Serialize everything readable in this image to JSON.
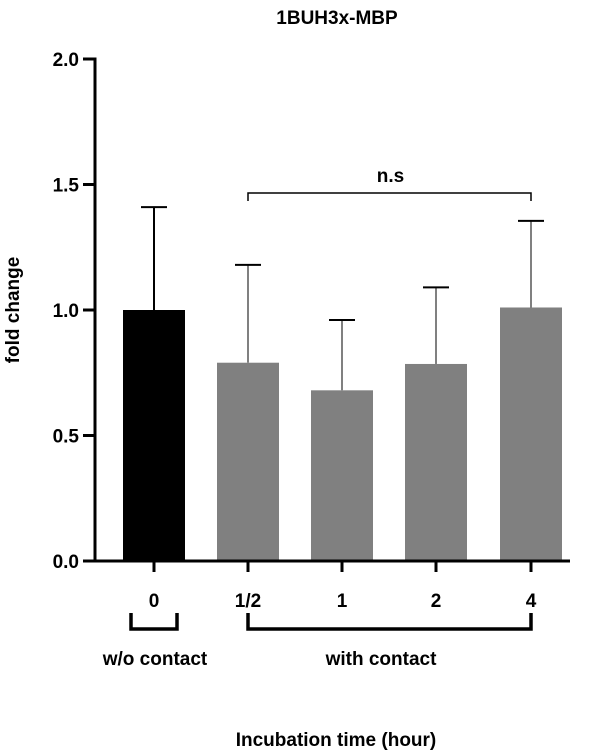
{
  "chart_data": {
    "type": "bar",
    "title": "1BUH3x-MBP",
    "xlabel": "Incubation time (hour)",
    "ylabel": "fold change",
    "ylim": [
      0,
      2.0
    ],
    "y_ticks": [
      "0.0",
      "0.5",
      "1.0",
      "1.5",
      "2.0"
    ],
    "categories": [
      "0",
      "1/2",
      "1",
      "2",
      "4"
    ],
    "values": [
      1.0,
      0.79,
      0.68,
      0.785,
      1.01
    ],
    "errors": [
      0.41,
      0.39,
      0.28,
      0.305,
      0.345
    ],
    "bar_colors": [
      "#000000",
      "#808080",
      "#808080",
      "#808080",
      "#808080"
    ],
    "groups": [
      {
        "label": "w/o contact",
        "from": 0,
        "to": 0
      },
      {
        "label": "with contact",
        "from": 1,
        "to": 4
      }
    ],
    "significance": {
      "label": "n.s",
      "from": 1,
      "to": 4
    }
  }
}
